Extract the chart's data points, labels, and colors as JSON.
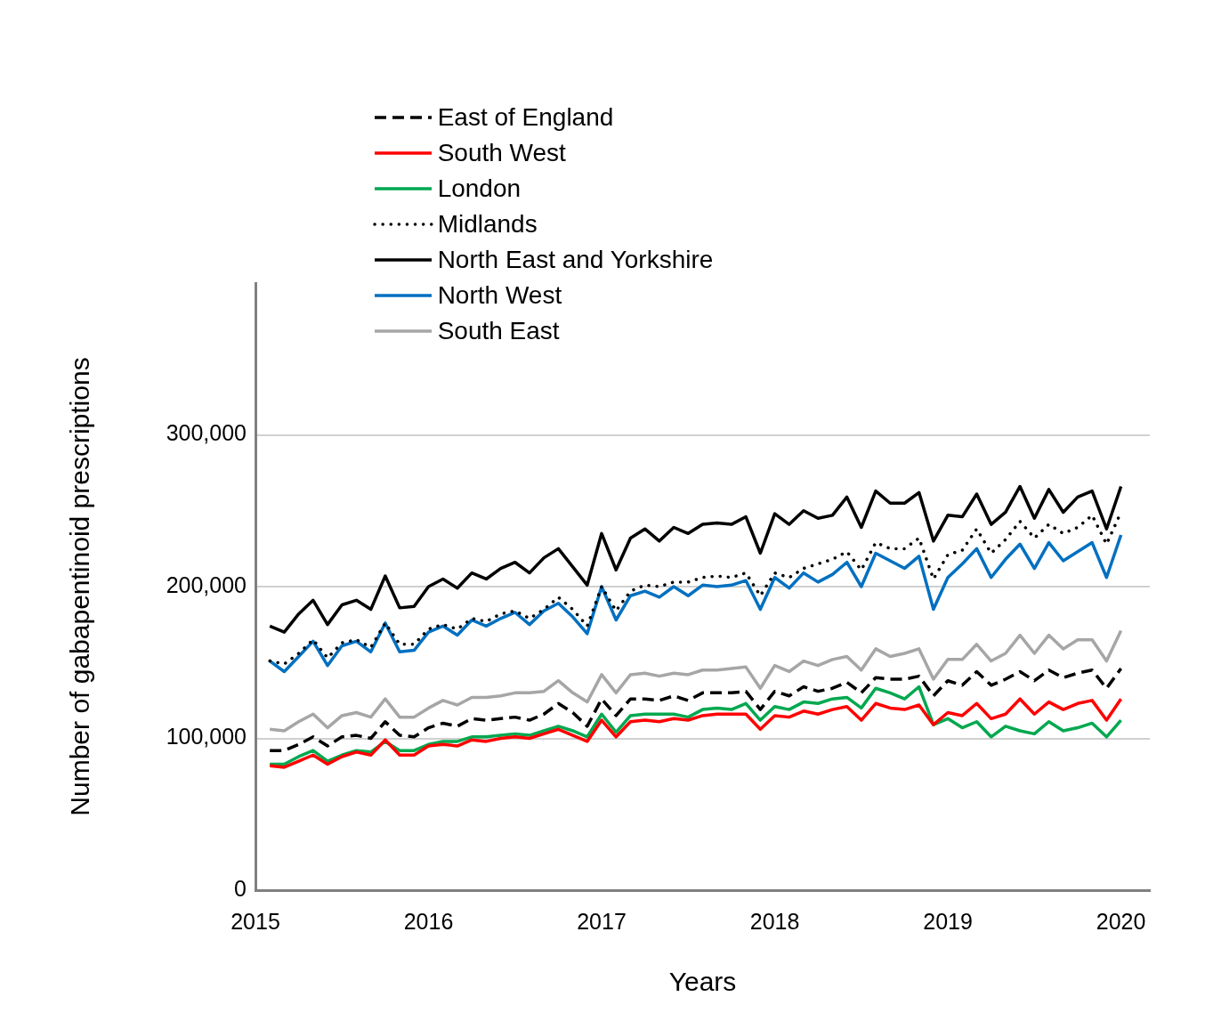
{
  "chart_data": {
    "type": "line",
    "xlabel": "Years",
    "ylabel": "Number of gabapentinoid prescriptions",
    "x": [
      "2015-02",
      "2015-03",
      "2015-04",
      "2015-05",
      "2015-06",
      "2015-07",
      "2015-08",
      "2015-09",
      "2015-10",
      "2015-11",
      "2015-12",
      "2016-01",
      "2016-02",
      "2016-03",
      "2016-04",
      "2016-05",
      "2016-06",
      "2016-07",
      "2016-08",
      "2016-09",
      "2016-10",
      "2016-11",
      "2016-12",
      "2017-01",
      "2017-02",
      "2017-03",
      "2017-04",
      "2017-05",
      "2017-06",
      "2017-07",
      "2017-08",
      "2017-09",
      "2017-10",
      "2017-11",
      "2017-12",
      "2018-01",
      "2018-02",
      "2018-03",
      "2018-04",
      "2018-05",
      "2018-06",
      "2018-07",
      "2018-08",
      "2018-09",
      "2018-10",
      "2018-11",
      "2018-12",
      "2019-01",
      "2019-02",
      "2019-03",
      "2019-04",
      "2019-05",
      "2019-06",
      "2019-07",
      "2019-08",
      "2019-09",
      "2019-10",
      "2019-11",
      "2019-12",
      "2020-01"
    ],
    "xlim": [
      "2015",
      "2020-03"
    ],
    "xticks": [
      "2015",
      "2016",
      "2017",
      "2018",
      "2019",
      "2020"
    ],
    "ylim": [
      0,
      400000
    ],
    "yticks": [
      0,
      {
        "value": 100000,
        "label": "100,000"
      },
      {
        "value": 200000,
        "label": "200,000"
      },
      {
        "value": 300000,
        "label": "300,000"
      }
    ],
    "grid": "y",
    "legend": "top left",
    "series": [
      {
        "name": "East of England",
        "color": "#000000",
        "line_style": "dashed",
        "values": [
          92000,
          92000,
          96000,
          101000,
          95000,
          101000,
          102000,
          100000,
          111000,
          102000,
          101000,
          107000,
          110000,
          108000,
          113000,
          112000,
          113000,
          114000,
          112000,
          116000,
          123000,
          117000,
          108000,
          126000,
          115000,
          126000,
          126000,
          125000,
          128000,
          125000,
          130000,
          130000,
          130000,
          131000,
          119000,
          131000,
          128000,
          134000,
          131000,
          133000,
          137000,
          130000,
          140000,
          139000,
          139000,
          141000,
          128000,
          138000,
          135000,
          144000,
          135000,
          139000,
          144000,
          138000,
          145000,
          140000,
          143000,
          145000,
          133000,
          146000
        ]
      },
      {
        "name": "South West",
        "color": "#ff0000",
        "line_style": "solid",
        "values": [
          82000,
          81000,
          85000,
          89000,
          83000,
          88000,
          91000,
          89000,
          99000,
          89000,
          89000,
          95000,
          96000,
          95000,
          99000,
          98000,
          100000,
          101000,
          100000,
          103000,
          106000,
          102000,
          98000,
          112000,
          101000,
          111000,
          112000,
          111000,
          113000,
          112000,
          115000,
          116000,
          116000,
          116000,
          106000,
          115000,
          114000,
          118000,
          116000,
          119000,
          121000,
          112000,
          123000,
          120000,
          119000,
          122000,
          109000,
          117000,
          115000,
          123000,
          113000,
          116000,
          126000,
          116000,
          124000,
          119000,
          123000,
          125000,
          112000,
          126000
        ]
      },
      {
        "name": "London",
        "color": "#00a84f",
        "line_style": "solid",
        "values": [
          83000,
          83000,
          88000,
          92000,
          85000,
          89000,
          92000,
          91000,
          98000,
          92000,
          92000,
          96000,
          98000,
          98000,
          101000,
          101000,
          102000,
          103000,
          102000,
          105000,
          108000,
          105000,
          101000,
          116000,
          104000,
          115000,
          116000,
          116000,
          116000,
          114000,
          119000,
          120000,
          119000,
          123000,
          112000,
          121000,
          119000,
          124000,
          123000,
          126000,
          127000,
          120000,
          133000,
          130000,
          126000,
          134000,
          109000,
          113000,
          107000,
          111000,
          101000,
          108000,
          105000,
          103000,
          111000,
          105000,
          107000,
          110000,
          101000,
          112000
        ]
      },
      {
        "name": "Midlands",
        "color": "#000000",
        "line_style": "dotted",
        "values": [
          151000,
          149000,
          156000,
          165000,
          153000,
          163000,
          165000,
          160000,
          176000,
          162000,
          162000,
          172000,
          175000,
          172000,
          179000,
          177000,
          182000,
          184000,
          179000,
          185000,
          193000,
          185000,
          174000,
          200000,
          184000,
          197000,
          201000,
          200000,
          203000,
          203000,
          206000,
          207000,
          206000,
          209000,
          194000,
          209000,
          206000,
          212000,
          215000,
          218000,
          223000,
          211000,
          229000,
          225000,
          225000,
          232000,
          205000,
          221000,
          224000,
          238000,
          222000,
          231000,
          243000,
          232000,
          241000,
          235000,
          239000,
          247000,
          228000,
          249000
        ]
      },
      {
        "name": "North East and Yorkshire",
        "color": "#000000",
        "line_style": "solid",
        "values": [
          174000,
          170000,
          182000,
          191000,
          175000,
          188000,
          191000,
          185000,
          207000,
          186000,
          187000,
          200000,
          205000,
          199000,
          209000,
          205000,
          212000,
          216000,
          209000,
          219000,
          225000,
          213000,
          201000,
          235000,
          211000,
          232000,
          238000,
          230000,
          239000,
          235000,
          241000,
          242000,
          241000,
          246000,
          222000,
          248000,
          241000,
          250000,
          245000,
          247000,
          259000,
          239000,
          263000,
          255000,
          255000,
          262000,
          230000,
          247000,
          246000,
          261000,
          241000,
          249000,
          266000,
          245000,
          264000,
          249000,
          259000,
          263000,
          238000,
          266000
        ]
      },
      {
        "name": "North West",
        "color": "#0070c0",
        "line_style": "solid",
        "values": [
          151000,
          144000,
          154000,
          164000,
          148000,
          161000,
          164000,
          157000,
          176000,
          157000,
          158000,
          170000,
          174000,
          168000,
          178000,
          174000,
          179000,
          183000,
          175000,
          184000,
          189000,
          180000,
          169000,
          200000,
          178000,
          194000,
          197000,
          193000,
          200000,
          194000,
          201000,
          200000,
          201000,
          204000,
          185000,
          206000,
          199000,
          209000,
          203000,
          208000,
          216000,
          200000,
          222000,
          217000,
          212000,
          220000,
          185000,
          206000,
          215000,
          225000,
          206000,
          218000,
          228000,
          212000,
          229000,
          217000,
          223000,
          229000,
          206000,
          234000
        ]
      },
      {
        "name": "South East",
        "color": "#a6a6a6",
        "line_style": "solid",
        "values": [
          106000,
          105000,
          111000,
          116000,
          107000,
          115000,
          117000,
          114000,
          126000,
          114000,
          114000,
          120000,
          125000,
          122000,
          127000,
          127000,
          128000,
          130000,
          130000,
          131000,
          138000,
          130000,
          124000,
          142000,
          130000,
          142000,
          143000,
          141000,
          143000,
          142000,
          145000,
          145000,
          146000,
          147000,
          133000,
          148000,
          144000,
          151000,
          148000,
          152000,
          154000,
          145000,
          159000,
          154000,
          156000,
          159000,
          139000,
          152000,
          152000,
          162000,
          151000,
          156000,
          168000,
          156000,
          168000,
          159000,
          165000,
          165000,
          151000,
          171000
        ]
      }
    ]
  }
}
